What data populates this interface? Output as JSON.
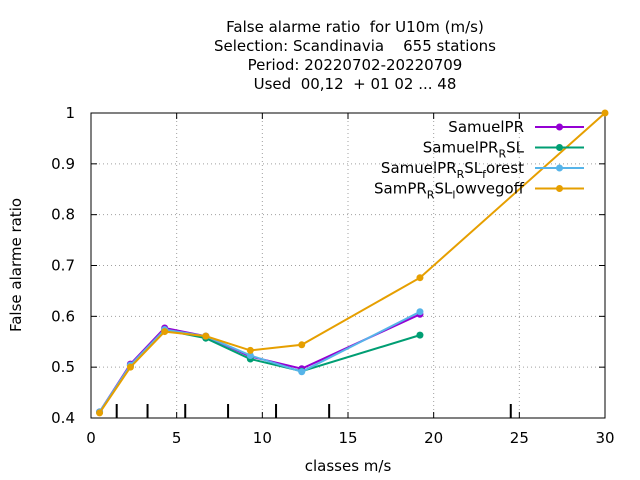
{
  "chart_data": {
    "type": "line",
    "title_lines": [
      "False alarme ratio  for U10m (m/s)",
      "Selection: Scandinavia    655 stations",
      "Period: 20220702-20220709",
      "Used  00,12  + 01 02 ... 48"
    ],
    "xlabel": "classes m/s",
    "ylabel": "False alarme ratio",
    "xlim": [
      0,
      30
    ],
    "ylim": [
      0.4,
      1.0
    ],
    "x_ticks": [
      0,
      5,
      10,
      15,
      20,
      25,
      30
    ],
    "x_tick_labels": [
      "0",
      "5",
      "10",
      "15",
      "20",
      "25",
      "30"
    ],
    "y_ticks": [
      0.4,
      0.5,
      0.6,
      0.7,
      0.8,
      0.9,
      1.0
    ],
    "y_tick_labels": [
      "0.4",
      "0.5",
      "0.6",
      "0.7",
      "0.8",
      "0.9",
      "1"
    ],
    "class_marks": [
      1.5,
      3.3,
      5.5,
      8,
      10.8,
      13.9,
      24.5
    ],
    "grid": true,
    "legend_position": "top-right",
    "series": [
      {
        "name": "SamuelPR",
        "label_main": "SamuelPR",
        "label_sub": "",
        "label_tail": "",
        "color": "#9400d3",
        "x": [
          0.5,
          2.3,
          4.3,
          6.7,
          9.3,
          12.3,
          19.2
        ],
        "values": [
          0.412,
          0.506,
          0.577,
          0.561,
          0.521,
          0.497,
          0.604
        ]
      },
      {
        "name": "SamuelPR_RSL",
        "label_main": "SamuelPR",
        "label_sub": "R",
        "label_tail": "SL",
        "color": "#009e73",
        "x": [
          0.5,
          2.3,
          4.3,
          6.7,
          9.3,
          12.3,
          19.2
        ],
        "values": [
          0.411,
          0.503,
          0.573,
          0.557,
          0.516,
          0.492,
          0.563
        ]
      },
      {
        "name": "SamuelPR_RSL_forest",
        "label_main": "SamuelPR",
        "label_sub": "R",
        "label_tail": "SL",
        "label_sub2": "f",
        "label_tail2": "orest",
        "color": "#56b4e9",
        "x": [
          0.5,
          2.3,
          4.3,
          6.7,
          9.3,
          12.3,
          19.2
        ],
        "values": [
          0.412,
          0.504,
          0.574,
          0.561,
          0.523,
          0.491,
          0.609
        ]
      },
      {
        "name": "SamPR_RSL_lowvegoff",
        "label_main": "SamPR",
        "label_sub": "R",
        "label_tail": "SL",
        "label_sub2": "l",
        "label_tail2": "owvegoff",
        "color": "#e69f00",
        "x": [
          0.5,
          2.3,
          4.3,
          6.7,
          9.3,
          12.3,
          19.2,
          30
        ],
        "values": [
          0.41,
          0.5,
          0.57,
          0.561,
          0.533,
          0.544,
          0.676,
          1.0
        ]
      }
    ]
  }
}
